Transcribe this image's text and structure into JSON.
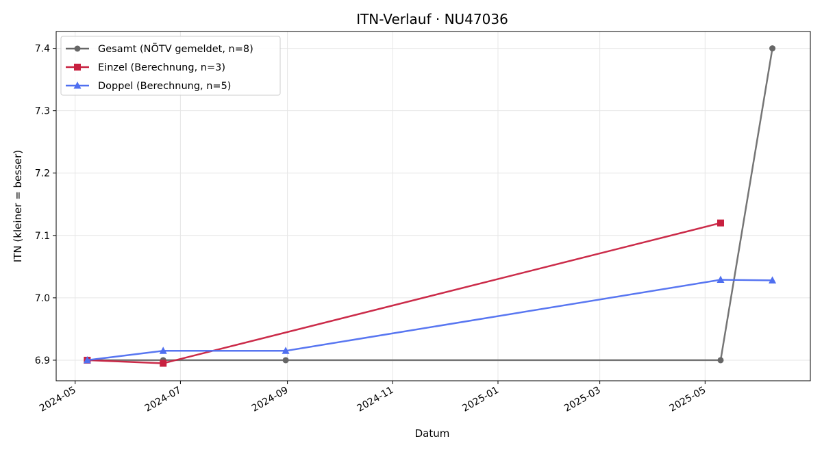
{
  "chart_data": {
    "type": "line",
    "title": "ITN-Verlauf · NU47036",
    "xlabel": "Datum",
    "ylabel": "ITN  (kleiner = besser)",
    "x_ticks": [
      "2024-05",
      "2024-07",
      "2024-09",
      "2024-11",
      "2025-01",
      "2025-03",
      "2025-05"
    ],
    "y_ticks": [
      "6.9",
      "7.0",
      "7.1",
      "7.2",
      "7.3",
      "7.4"
    ],
    "xlim": [
      "2024-04-20",
      "2025-07-01"
    ],
    "ylim": [
      6.867,
      7.427
    ],
    "grid": true,
    "legend_position": "top-left",
    "series": [
      {
        "name": "Gesamt (NÖTV gemeldet, n=8)",
        "color": "#666666",
        "marker": "circle",
        "x": [
          "2024-05-08",
          "2024-06-21",
          "2024-08-31",
          "2025-05-10",
          "2025-06-09"
        ],
        "y": [
          6.9,
          6.9,
          6.9,
          6.9,
          7.4
        ]
      },
      {
        "name": "Einzel (Berechnung, n=3)",
        "color": "#c8203f",
        "marker": "square",
        "x": [
          "2024-05-08",
          "2024-06-21",
          "2025-05-10"
        ],
        "y": [
          6.9,
          6.895,
          7.12
        ]
      },
      {
        "name": "Doppel (Berechnung, n=5)",
        "color": "#4f6ff0",
        "marker": "triangle",
        "x": [
          "2024-05-08",
          "2024-06-21",
          "2024-08-31",
          "2025-05-10",
          "2025-06-09"
        ],
        "y": [
          6.9,
          6.915,
          6.915,
          7.029,
          7.028
        ]
      }
    ]
  }
}
